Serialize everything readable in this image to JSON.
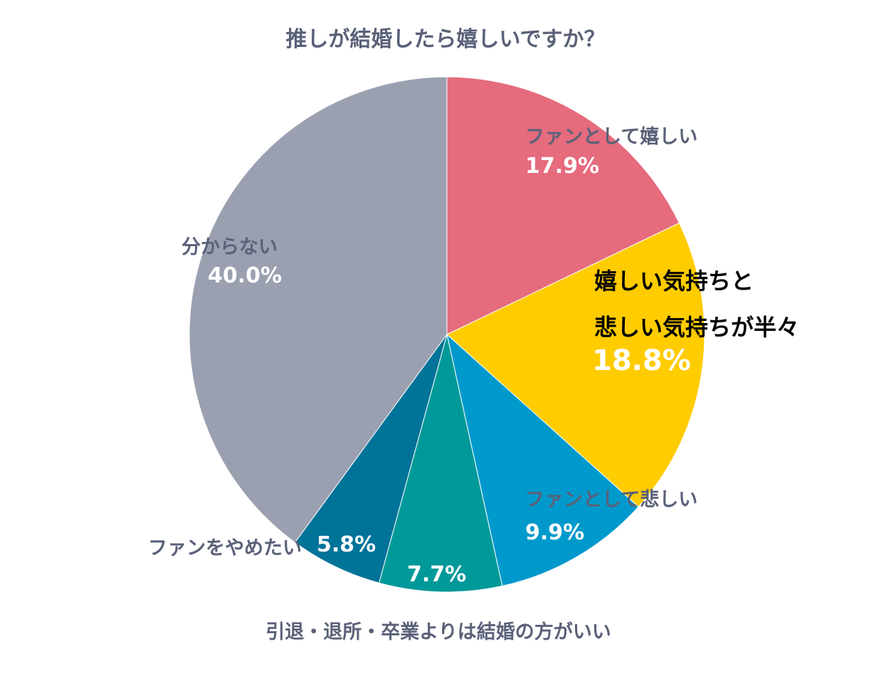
{
  "chart_data": {
    "type": "pie",
    "title": "推しが結婚したら嬉しいですか？",
    "start_angle": "12 o'clock",
    "direction": "clockwise",
    "slices": [
      {
        "label": "ファンとして嬉しい",
        "value": 17.9,
        "display": "17.9%",
        "color": "#E56B7D"
      },
      {
        "label_lines": [
          "嬉しい気持ちと",
          "悲しい気持ちが半々"
        ],
        "value": 18.8,
        "display": "18.8%",
        "color": "#FFCC00"
      },
      {
        "label": "ファンとして悲しい",
        "value": 9.9,
        "display": "9.9%",
        "color": "#0099CC"
      },
      {
        "label": "引退・退所・卒業よりは結婚の方がいい",
        "value": 7.7,
        "display": "7.7%",
        "color": "#009999"
      },
      {
        "label": "ファンをやめたい",
        "value": 5.8,
        "display": "5.8%",
        "color": "#007399"
      },
      {
        "label": "分からない",
        "value": 40.0,
        "display": "40.0%",
        "color": "#9AA0B0"
      }
    ]
  }
}
